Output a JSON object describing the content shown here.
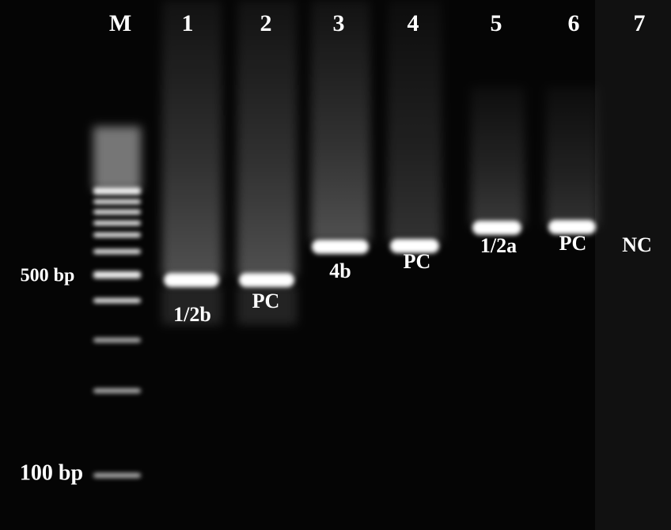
{
  "lanes": [
    {
      "label": "M"
    },
    {
      "label": "1",
      "band": "1/2b"
    },
    {
      "label": "2",
      "band": "PC"
    },
    {
      "label": "3",
      "band": "4b"
    },
    {
      "label": "4",
      "band": "PC"
    },
    {
      "label": "5",
      "band": "1/2a"
    },
    {
      "label": "6",
      "band": "PC"
    },
    {
      "label": "7",
      "band": "NC"
    }
  ],
  "markers": [
    "500 bp",
    "100 bp"
  ]
}
